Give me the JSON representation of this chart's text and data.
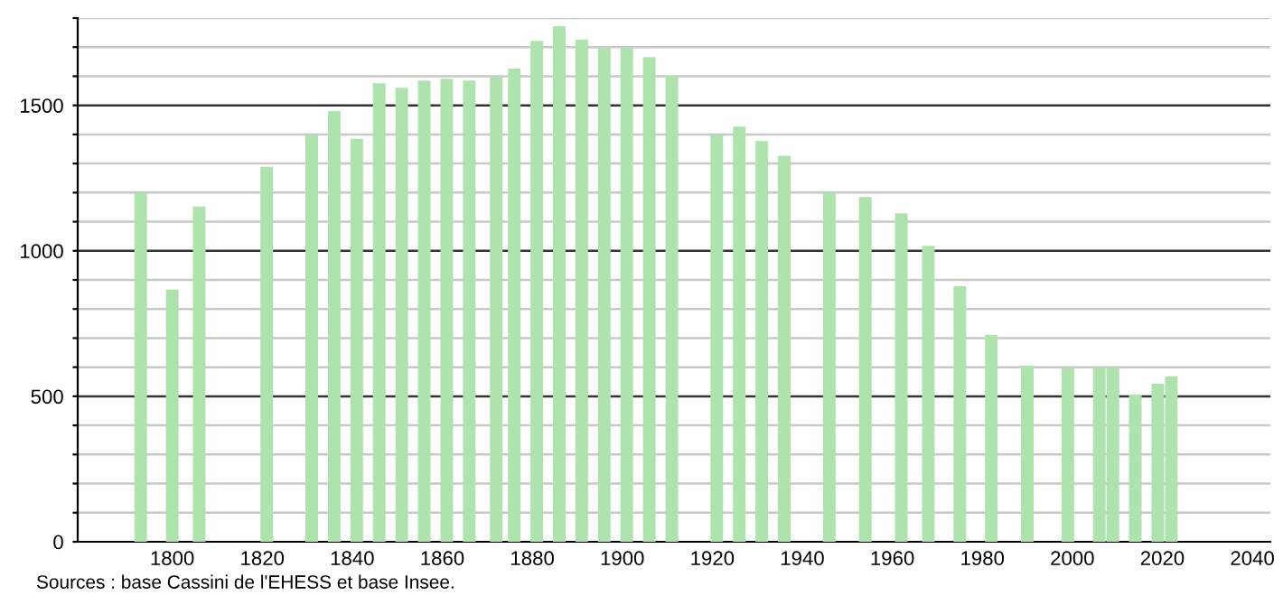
{
  "chart_data": {
    "type": "bar",
    "x": [
      1793,
      1800,
      1806,
      1821,
      1831,
      1836,
      1841,
      1846,
      1851,
      1856,
      1861,
      1866,
      1872,
      1876,
      1881,
      1886,
      1891,
      1896,
      1901,
      1906,
      1911,
      1921,
      1926,
      1931,
      1936,
      1946,
      1954,
      1962,
      1968,
      1975,
      1982,
      1990,
      1999,
      2006,
      2009,
      2014,
      2019,
      2022
    ],
    "values": [
      1200,
      867,
      1152,
      1289,
      1399,
      1480,
      1385,
      1576,
      1560,
      1585,
      1591,
      1585,
      1597,
      1626,
      1722,
      1772,
      1726,
      1697,
      1697,
      1666,
      1601,
      1397,
      1427,
      1377,
      1327,
      1200,
      1185,
      1129,
      1017,
      878,
      711,
      605,
      597,
      597,
      600,
      505,
      543,
      568
    ],
    "color": "#aee3ae",
    "xlim": [
      1779,
      2044
    ],
    "xticks": [
      1800,
      1820,
      1840,
      1860,
      1880,
      1900,
      1920,
      1940,
      1960,
      1980,
      2000,
      2020,
      2040
    ],
    "ylim": [
      0,
      1800
    ],
    "yticks": [
      0,
      {
        "value": 100,
        "label": null
      },
      {
        "value": 200,
        "label": null
      },
      {
        "value": 300,
        "label": null
      },
      {
        "value": 400,
        "label": null
      },
      500,
      {
        "value": 600,
        "label": null
      },
      {
        "value": 700,
        "label": null
      },
      {
        "value": 800,
        "label": null
      },
      {
        "value": 900,
        "label": null
      },
      1000,
      {
        "value": 1100,
        "label": null
      },
      {
        "value": 1200,
        "label": null
      },
      {
        "value": 1300,
        "label": null
      },
      {
        "value": 1400,
        "label": null
      },
      1500,
      {
        "value": 1600,
        "label": null
      },
      {
        "value": 1700,
        "label": null
      },
      {
        "value": 1800,
        "label": null
      }
    ],
    "grid": "y",
    "annotations": [
      "Sources : base Cassini de l'EHESS et base Insee."
    ]
  }
}
